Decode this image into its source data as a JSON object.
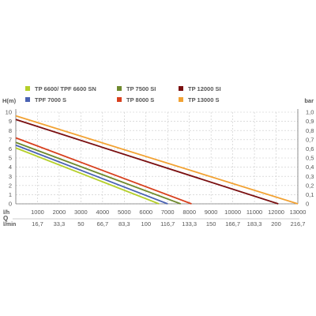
{
  "chart_data": {
    "type": "line",
    "y_left_label": "H(m)",
    "y_right_label": "bar",
    "x_row_flow_label": "l/h",
    "x_row_min_label": "l/min",
    "x_axis_letter": "Q",
    "xlim": [
      0,
      13000
    ],
    "ylim": [
      0,
      10
    ],
    "y_left_ticks": [
      "0",
      "1",
      "2",
      "3",
      "4",
      "5",
      "6",
      "7",
      "8",
      "9",
      "10"
    ],
    "y_right_ticks": [
      "0",
      "0,1",
      "0,2",
      "0,3",
      "0,4",
      "0,5",
      "0,6",
      "0,7",
      "0,8",
      "0,9",
      "1,0"
    ],
    "x_ticks_lh": [
      "1000",
      "2000",
      "3000",
      "4000",
      "5000",
      "6000",
      "7000",
      "8000",
      "9000",
      "10000",
      "11000",
      "12000",
      "13000"
    ],
    "x_ticks_lmin": [
      "16,7",
      "33,3",
      "50",
      "66,7",
      "83,3",
      "100",
      "116,7",
      "133,3",
      "150",
      "166,7",
      "183,3",
      "200",
      "216,7"
    ],
    "grid": true,
    "series": [
      {
        "name": "TP 6600/ TPF 6600 SN",
        "color": "#b5cf2a",
        "x": [
          0,
          6600
        ],
        "y": [
          6.1,
          0
        ]
      },
      {
        "name": "TPF 7000 S",
        "color": "#4a62b3",
        "x": [
          0,
          7000
        ],
        "y": [
          6.4,
          0
        ]
      },
      {
        "name": "TP 7500 SI",
        "color": "#6f8a2e",
        "x": [
          0,
          7600
        ],
        "y": [
          6.7,
          0
        ]
      },
      {
        "name": "TP 8000 S",
        "color": "#d8401e",
        "x": [
          0,
          8100
        ],
        "y": [
          7.2,
          0
        ]
      },
      {
        "name": "TP 12000 SI",
        "color": "#7a0f10",
        "x": [
          0,
          12100
        ],
        "y": [
          9.2,
          0
        ]
      },
      {
        "name": "TP 13000 S",
        "color": "#f2a233",
        "x": [
          0,
          13000
        ],
        "y": [
          9.6,
          0
        ]
      }
    ]
  }
}
